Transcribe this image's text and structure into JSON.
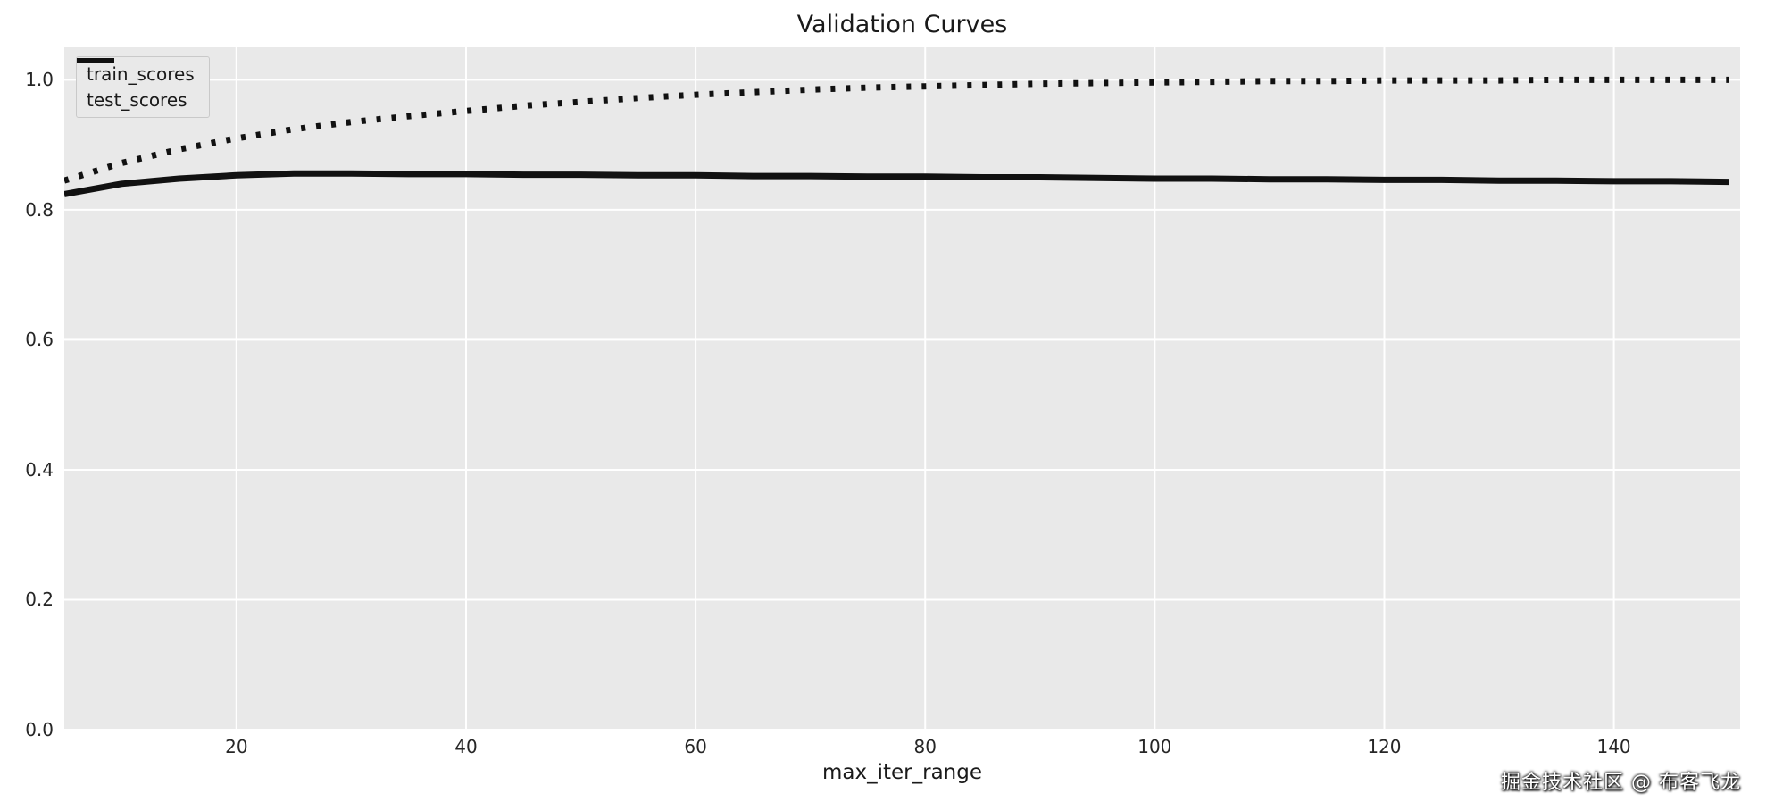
{
  "page": {
    "watermark": "掘金技术社区 @ 布客飞龙"
  },
  "chart_data": {
    "type": "line",
    "title": "Validation Curves",
    "xlabel": "max_iter_range",
    "ylabel": "",
    "xlim": [
      5,
      151
    ],
    "ylim": [
      0.0,
      1.05
    ],
    "x_ticks": [
      20,
      40,
      60,
      80,
      100,
      120,
      140
    ],
    "y_ticks": [
      0.0,
      0.2,
      0.4,
      0.6,
      0.8,
      1.0
    ],
    "grid": true,
    "grid_color": "#ffffff",
    "plot_bg": "#e9e9e9",
    "legend_position": "upper left",
    "x": [
      5,
      10,
      15,
      20,
      25,
      30,
      35,
      40,
      45,
      50,
      55,
      60,
      65,
      70,
      75,
      80,
      85,
      90,
      95,
      100,
      105,
      110,
      115,
      120,
      125,
      130,
      135,
      140,
      145,
      150
    ],
    "series": [
      {
        "name": "train_scores",
        "style": "dotted",
        "color": "#111111",
        "values": [
          0.845,
          0.872,
          0.893,
          0.91,
          0.924,
          0.935,
          0.944,
          0.952,
          0.96,
          0.966,
          0.972,
          0.977,
          0.981,
          0.985,
          0.988,
          0.99,
          0.992,
          0.994,
          0.995,
          0.996,
          0.997,
          0.998,
          0.998,
          0.999,
          0.999,
          0.999,
          1.0,
          1.0,
          1.0,
          1.0
        ]
      },
      {
        "name": "test_scores",
        "style": "solid",
        "color": "#111111",
        "values": [
          0.824,
          0.84,
          0.848,
          0.853,
          0.856,
          0.856,
          0.855,
          0.855,
          0.854,
          0.854,
          0.853,
          0.853,
          0.852,
          0.852,
          0.851,
          0.851,
          0.85,
          0.85,
          0.849,
          0.848,
          0.848,
          0.847,
          0.847,
          0.846,
          0.846,
          0.845,
          0.845,
          0.844,
          0.844,
          0.843
        ]
      }
    ]
  }
}
